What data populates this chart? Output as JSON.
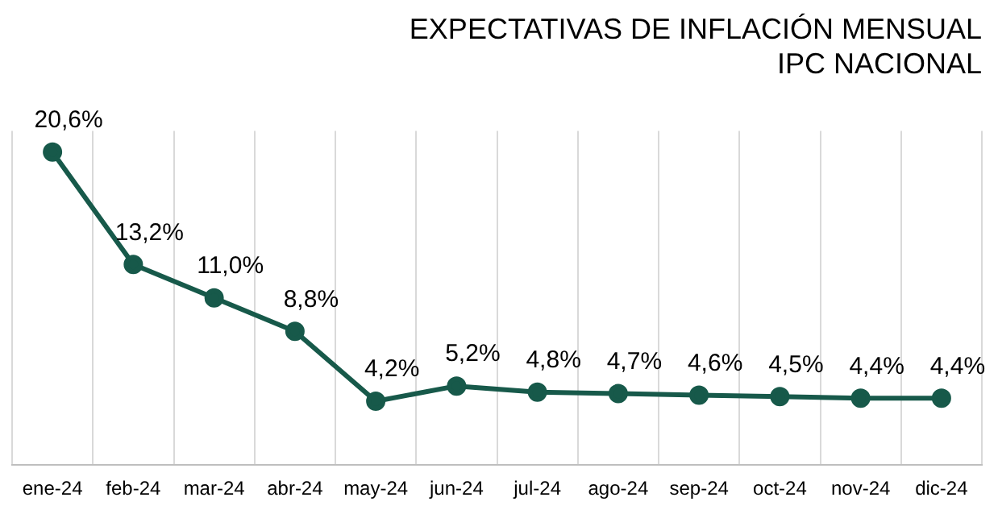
{
  "chart_data": {
    "type": "line",
    "title": "EXPECTATIVAS DE INFLACIÓN MENSUAL\nIPC NACIONAL",
    "categories": [
      "ene-24",
      "feb-24",
      "mar-24",
      "abr-24",
      "may-24",
      "jun-24",
      "jul-24",
      "ago-24",
      "sep-24",
      "oct-24",
      "nov-24",
      "dic-24"
    ],
    "series": [
      {
        "color": "#17594a",
        "values": [
          20.6,
          13.2,
          11.0,
          8.8,
          4.2,
          5.2,
          4.8,
          4.7,
          4.6,
          4.5,
          4.4,
          4.4
        ],
        "value_labels": [
          "20,6%",
          "13,2%",
          "11,0%",
          "8,8%",
          "4,2%",
          "5,2%",
          "4,8%",
          "4,7%",
          "4,6%",
          "4,5%",
          "4,4%",
          "4,4%"
        ]
      }
    ],
    "ylim": [
      0,
      22
    ],
    "tick_labels": "x",
    "grid": "x",
    "legend": false,
    "marker": "circle",
    "line_style": "solid"
  }
}
